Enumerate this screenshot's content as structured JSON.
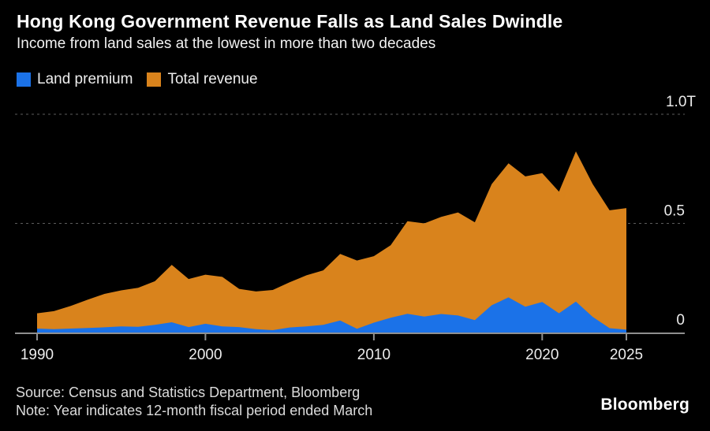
{
  "header": {
    "title": "Hong Kong Government Revenue Falls as Land Sales Dwindle",
    "subtitle": "Income from land sales at the lowest in more than two decades"
  },
  "legend": {
    "items": [
      {
        "label": "Land premium",
        "color": "#1b72e8"
      },
      {
        "label": "Total revenue",
        "color": "#d9831c"
      }
    ]
  },
  "chart_data": {
    "type": "area",
    "title": "Hong Kong Government Revenue Falls as Land Sales Dwindle",
    "unit_suffix": "T",
    "x": [
      1990,
      1991,
      1992,
      1993,
      1994,
      1995,
      1996,
      1997,
      1998,
      1999,
      2000,
      2001,
      2002,
      2003,
      2004,
      2005,
      2006,
      2007,
      2008,
      2009,
      2010,
      2011,
      2012,
      2013,
      2014,
      2015,
      2016,
      2017,
      2018,
      2019,
      2020,
      2021,
      2022,
      2023,
      2024,
      2025
    ],
    "series": [
      {
        "name": "Land premium",
        "color": "#1b72e8",
        "values": [
          0.018,
          0.015,
          0.018,
          0.021,
          0.024,
          0.028,
          0.026,
          0.035,
          0.047,
          0.025,
          0.04,
          0.028,
          0.025,
          0.015,
          0.011,
          0.023,
          0.028,
          0.035,
          0.055,
          0.017,
          0.045,
          0.068,
          0.086,
          0.073,
          0.085,
          0.078,
          0.057,
          0.125,
          0.161,
          0.118,
          0.14,
          0.088,
          0.142,
          0.072,
          0.02,
          0.013
        ]
      },
      {
        "name": "Total revenue",
        "color": "#d9831c",
        "values": [
          0.088,
          0.098,
          0.122,
          0.15,
          0.177,
          0.193,
          0.205,
          0.235,
          0.31,
          0.245,
          0.265,
          0.255,
          0.2,
          0.188,
          0.195,
          0.23,
          0.262,
          0.285,
          0.36,
          0.33,
          0.35,
          0.4,
          0.51,
          0.5,
          0.53,
          0.55,
          0.505,
          0.68,
          0.775,
          0.715,
          0.73,
          0.645,
          0.83,
          0.68,
          0.56,
          0.57
        ]
      }
    ],
    "xlim": [
      1990,
      2025
    ],
    "ylim": [
      0,
      1.0
    ],
    "xticks": [
      {
        "value": 1990,
        "label": "1990"
      },
      {
        "value": 2000,
        "label": "2000"
      },
      {
        "value": 2010,
        "label": "2010"
      },
      {
        "value": 2020,
        "label": "2020"
      },
      {
        "value": 2025,
        "label": "2025"
      }
    ],
    "yticks": [
      {
        "value": 0,
        "label": "0"
      },
      {
        "value": 0.5,
        "label": "0.5"
      },
      {
        "value": 1.0,
        "label": "1.0T"
      }
    ],
    "grid": "horizontal-dashed",
    "legend_position": "top-left",
    "axis_color": "#8f8f8f",
    "gridline_color": "#5c5c5c",
    "tick_label_color": "#ececec"
  },
  "footer": {
    "source": "Source: Census and Statistics Department, Bloomberg",
    "note": "Note: Year indicates 12-month fiscal period ended March",
    "logo": "Bloomberg"
  },
  "colors": {
    "background": "#000000",
    "title_text": "#ffffff"
  }
}
